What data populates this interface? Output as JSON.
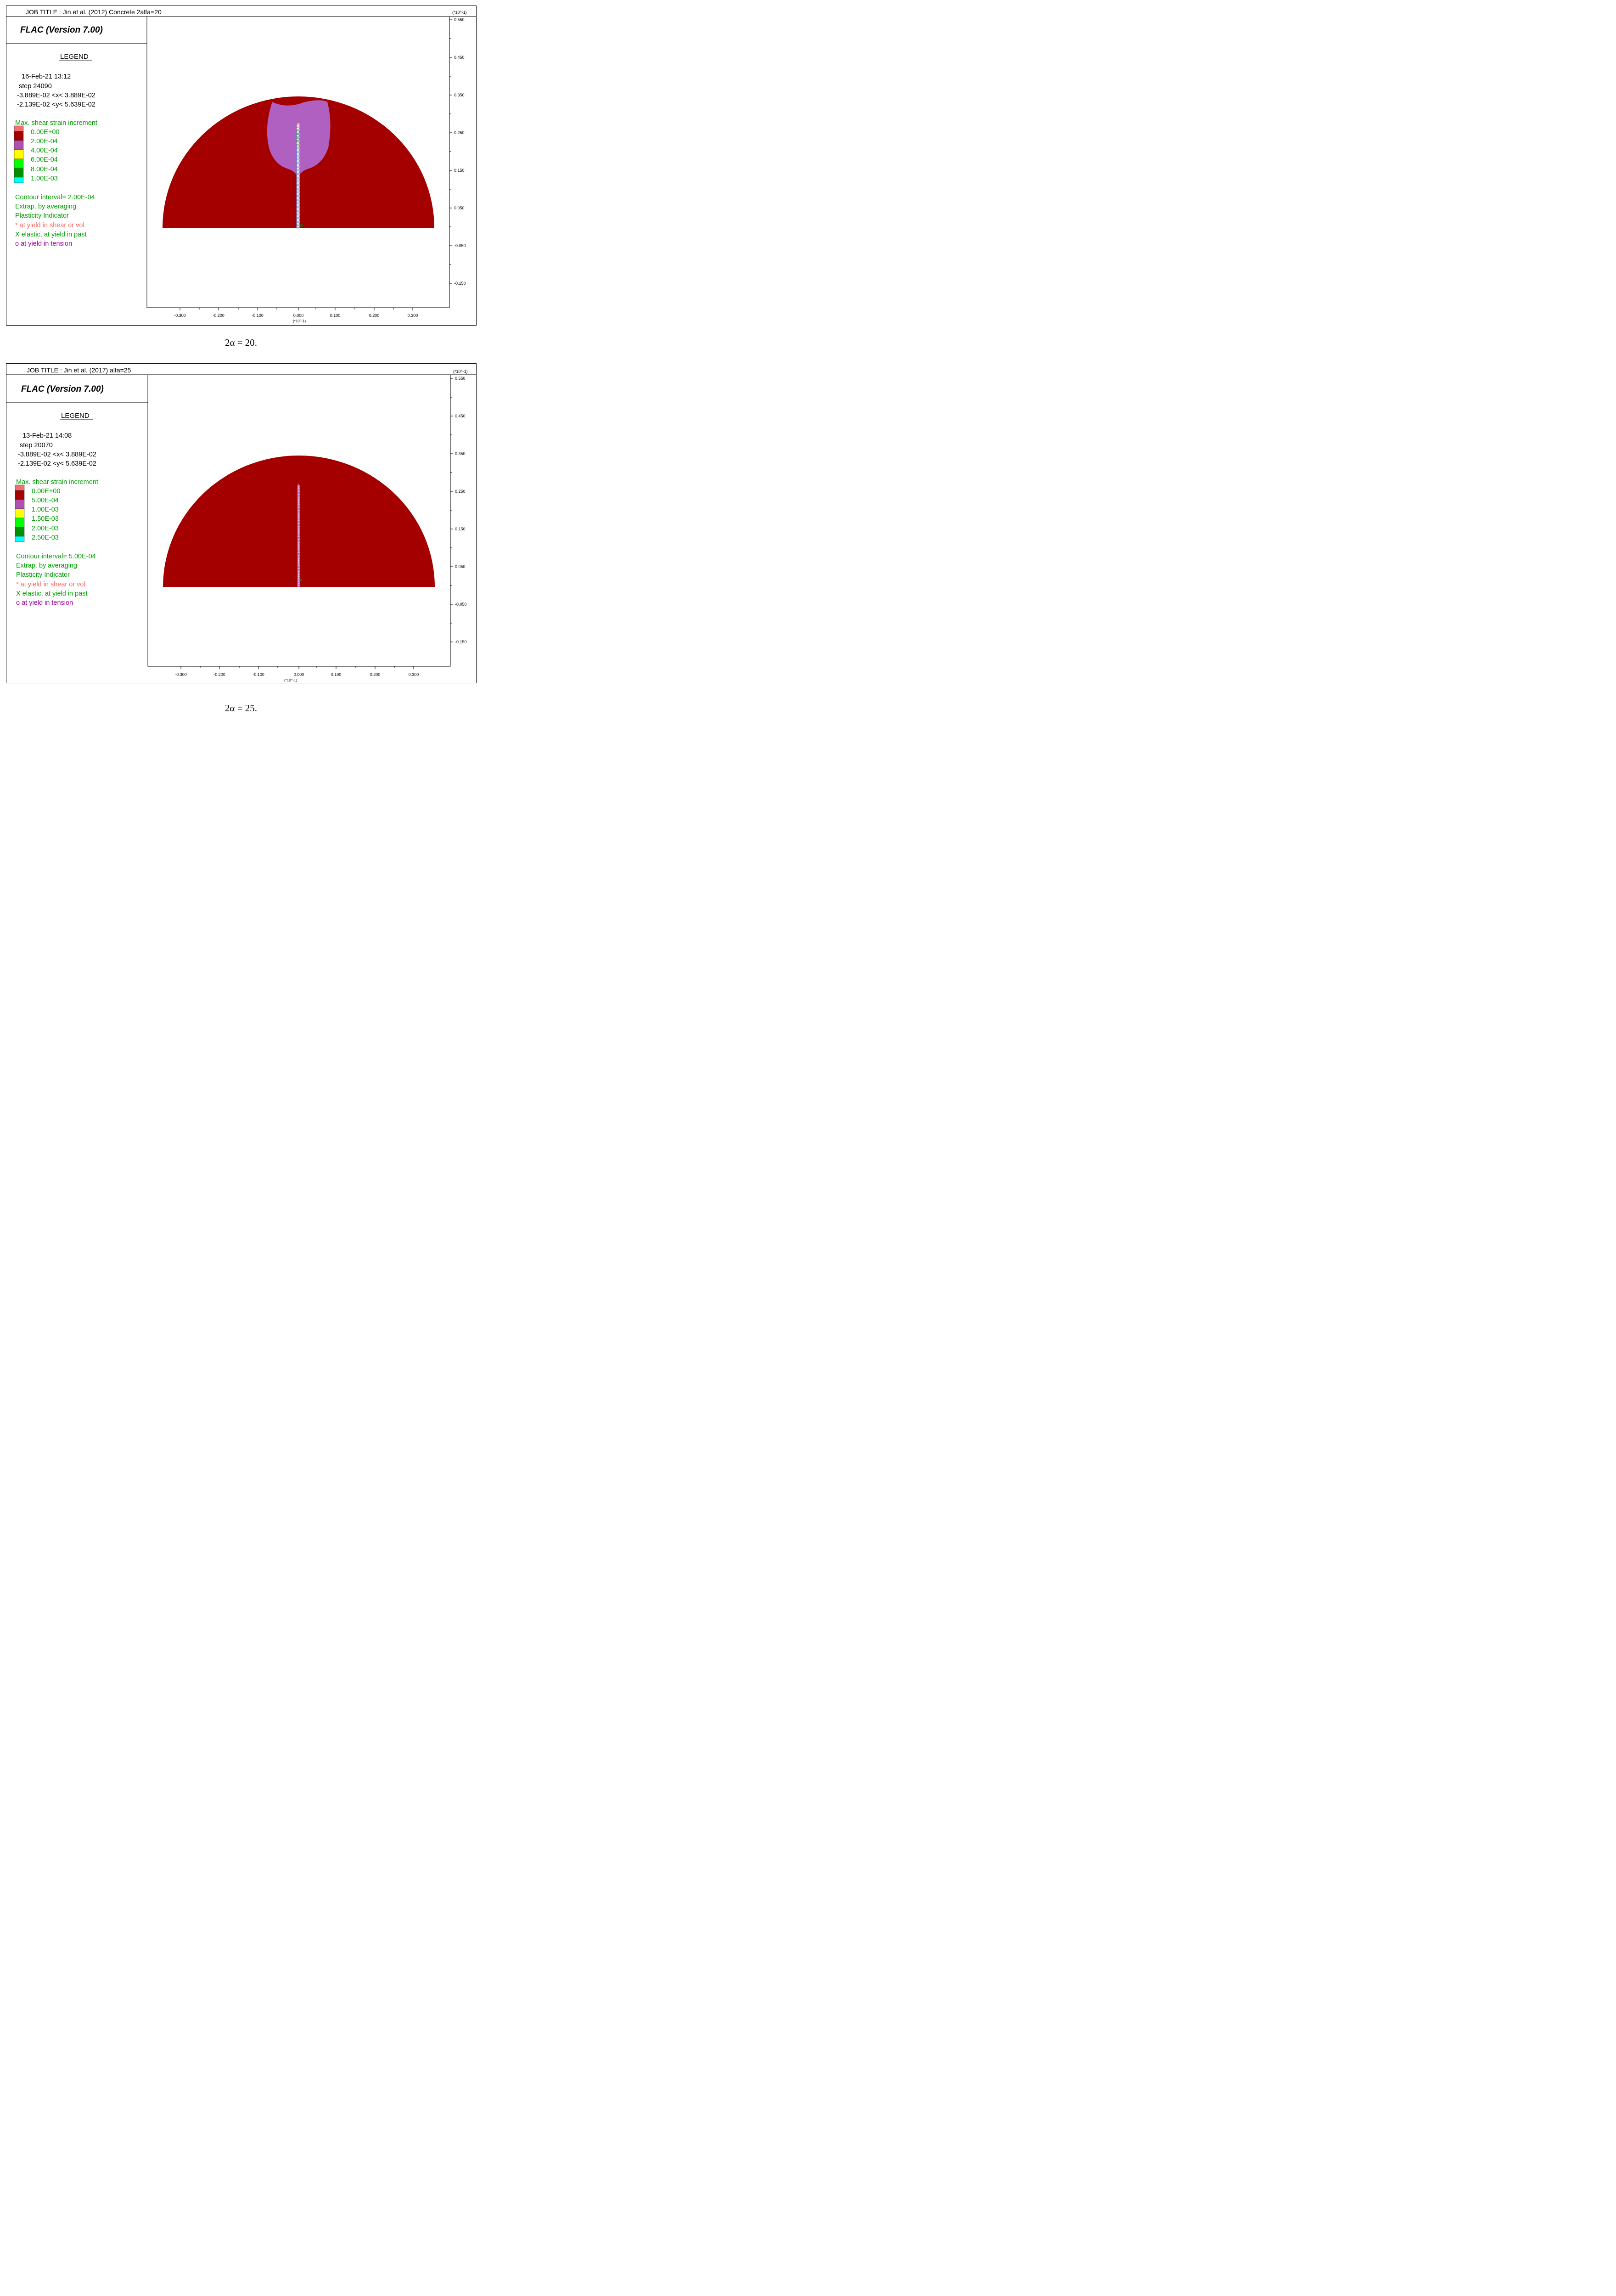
{
  "colors": {
    "material": "#A50000",
    "plastic_zone": "#B060C0",
    "legend_text_green": "#00A000",
    "shear_marker": "#FF6060",
    "tension_marker": "#A000A0",
    "band0": "#F07070",
    "band1": "#A50000",
    "band2": "#B050B0",
    "band3": "#FFFF00",
    "band4": "#00FF00",
    "band5": "#009000",
    "band6": "#00FFFF"
  },
  "panels": [
    {
      "job_title": "JOB TITLE : Jin et al. (2012) Concrete 2alfa=20",
      "program": "FLAC (Version 7.00)",
      "legend_heading": "LEGEND",
      "date": "16-Feb-21  13:12",
      "step": "step     24090",
      "x_range": "-3.889E-02 <x<  3.889E-02",
      "y_range": "-2.139E-02 <y<  5.639E-02",
      "contour_title": "Max. shear strain increment",
      "contour_levels": [
        "0.00E+00",
        "2.00E-04",
        "4.00E-04",
        "6.00E-04",
        "8.00E-04",
        "1.00E-03"
      ],
      "contour_interval": "Contour interval=  2.00E-04",
      "extrap": "Extrap. by averaging",
      "plasticity": "Plasticity Indicator",
      "marker_shear": "* at yield in shear or vol.",
      "marker_elastic": "X elastic, at yield in past",
      "marker_tension": "o at yield in tension",
      "axis_multiplier": "(*10^-1)",
      "x_ticks": [
        "-0.300",
        "-0.200",
        "-0.100",
        "0.000",
        "0.100",
        "0.200",
        "0.300"
      ],
      "y_ticks": [
        "0.550",
        "0.450",
        "0.350",
        "0.250",
        "0.150",
        "0.050",
        "-0.050",
        "-0.150"
      ],
      "show_plastic_zone": true,
      "caption": "2α = 20."
    },
    {
      "job_title": "JOB TITLE : Jin et al. (2017) alfa=25",
      "program": "FLAC (Version 7.00)",
      "legend_heading": "LEGEND",
      "date": "13-Feb-21  14:08",
      "step": "step     20070",
      "x_range": "-3.889E-02 <x<  3.889E-02",
      "y_range": "-2.139E-02 <y<  5.639E-02",
      "contour_title": "Max. shear strain increment",
      "contour_levels": [
        "0.00E+00",
        "5.00E-04",
        "1.00E-03",
        "1.50E-03",
        "2.00E-03",
        "2.50E-03"
      ],
      "contour_interval": "Contour interval=  5.00E-04",
      "extrap": "Extrap. by averaging",
      "plasticity": "Plasticity Indicator",
      "marker_shear": "* at yield in shear or vol.",
      "marker_elastic": "X elastic, at yield in past",
      "marker_tension": "o at yield in tension",
      "axis_multiplier": "(*10^-1)",
      "x_ticks": [
        "-0.300",
        "-0.200",
        "-0.100",
        "0.000",
        "0.100",
        "0.200",
        "0.300"
      ],
      "y_ticks": [
        "0.550",
        "0.450",
        "0.350",
        "0.250",
        "0.150",
        "0.050",
        "-0.050",
        "-0.150"
      ],
      "show_plastic_zone": false,
      "caption": "2α = 25."
    }
  ]
}
